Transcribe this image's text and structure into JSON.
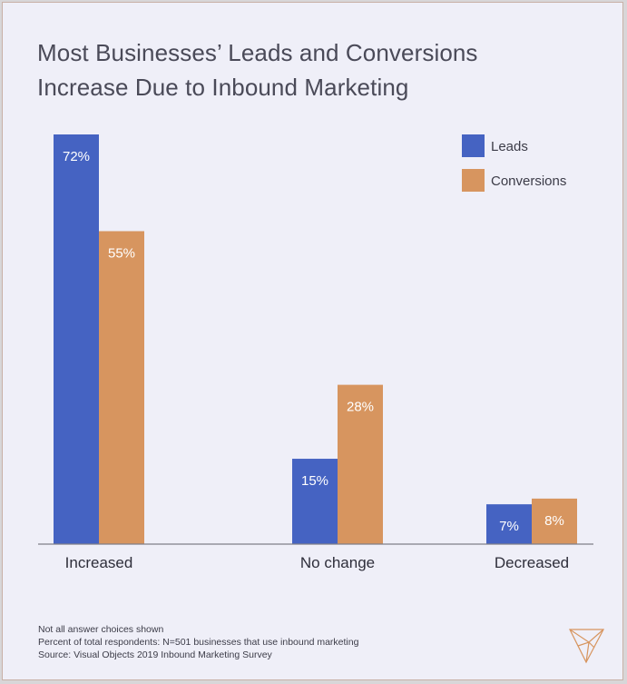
{
  "title_lines": [
    "Most Businesses’ Leads and Conversions",
    "Increase Due to Inbound Marketing"
  ],
  "colors": {
    "leads": "#4563c2",
    "conversions": "#d7955f",
    "axis": "#7f7f88",
    "text": "#3c3c48",
    "background": "#efeff8"
  },
  "chart_data": {
    "type": "bar",
    "title": "Most Businesses’ Leads and Conversions Increase Due to Inbound Marketing",
    "categories": [
      "Increased",
      "No change",
      "Decreased"
    ],
    "series": [
      {
        "name": "Leads",
        "values": [
          72,
          15,
          7
        ],
        "labels": [
          "72%",
          "15%",
          "7%"
        ]
      },
      {
        "name": "Conversions",
        "values": [
          55,
          28,
          8
        ],
        "labels": [
          "55%",
          "28%",
          "8%"
        ]
      }
    ],
    "ylim": [
      0,
      72
    ],
    "unit": "%",
    "legend_position": "top-right",
    "grid": false
  },
  "notes": [
    "Not all answer choices shown",
    "Percent of total respondents: N=501 businesses that use inbound marketing",
    "Source: Visual Objects 2019 Inbound Marketing Survey"
  ],
  "logo_icon": "visual-objects-logo-icon"
}
